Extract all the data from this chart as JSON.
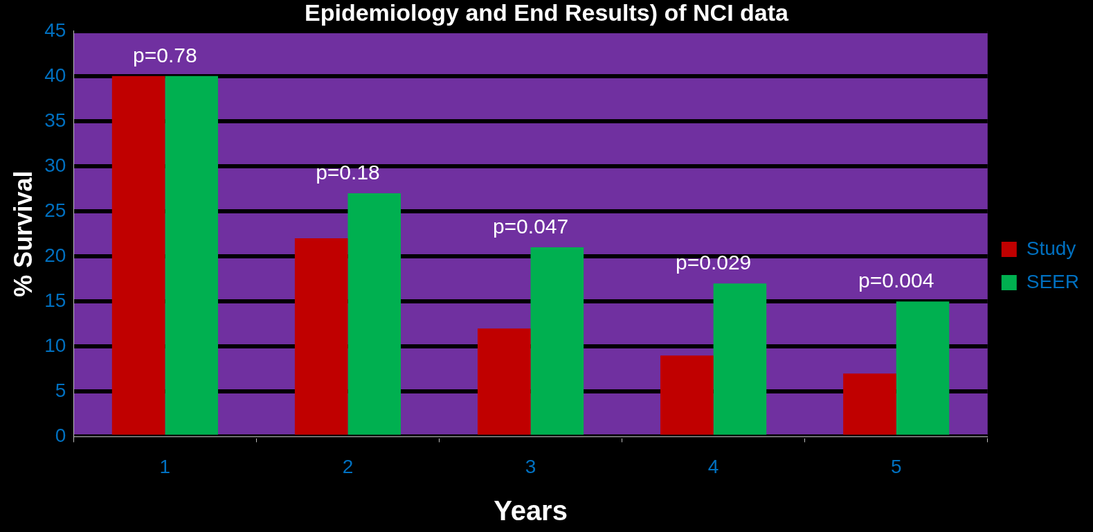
{
  "chart_data": {
    "type": "bar",
    "title": "Epidemiology and End Results) of NCI data",
    "xlabel": "Years",
    "ylabel": "% Survival",
    "categories": [
      "1",
      "2",
      "3",
      "4",
      "5"
    ],
    "series": [
      {
        "name": "Study",
        "color": "#c00000",
        "values": [
          40,
          22,
          12,
          9,
          7
        ]
      },
      {
        "name": "SEER",
        "color": "#00b050",
        "values": [
          40,
          27,
          21,
          17,
          15
        ]
      }
    ],
    "ylim": [
      0,
      45
    ],
    "yticks": [
      0,
      5,
      10,
      15,
      20,
      25,
      30,
      35,
      40,
      45
    ],
    "grid": "y",
    "legend": "right",
    "annotations": [
      "p=0.78",
      "p=0.18",
      "p=0.047",
      "p=0.029",
      "p=0.004"
    ]
  }
}
